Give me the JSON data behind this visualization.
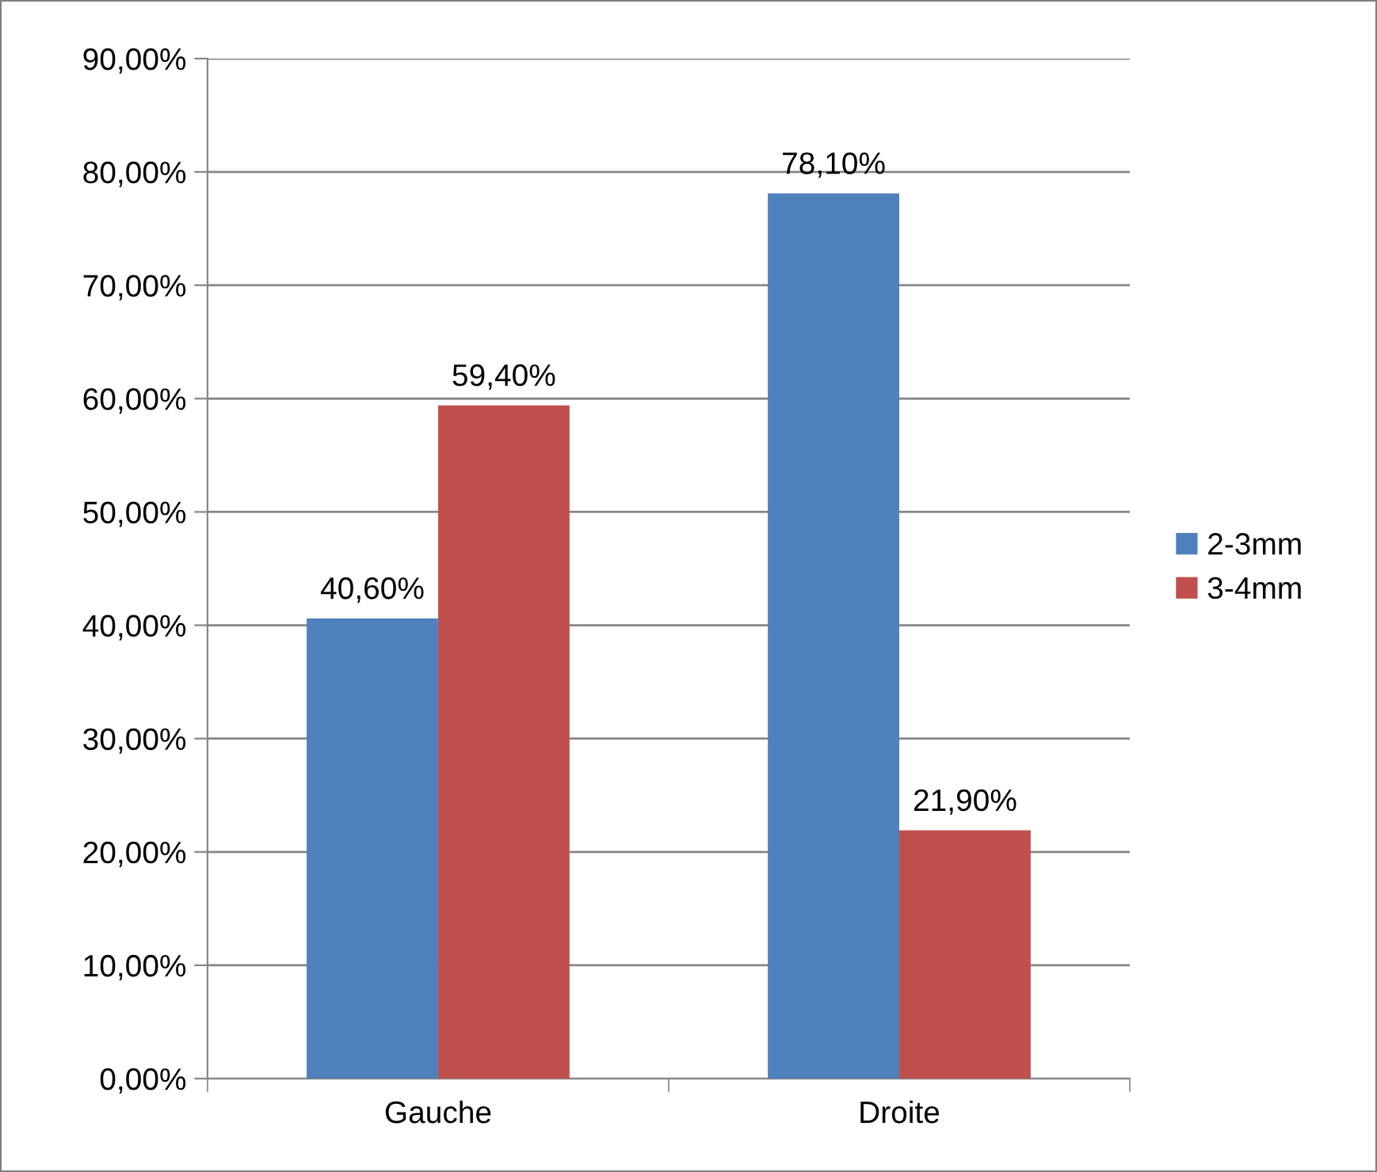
{
  "chart_data": {
    "type": "bar",
    "categories": [
      "Gauche",
      "Droite"
    ],
    "series": [
      {
        "name": "2-3mm",
        "color": "#4f81bd",
        "values": [
          40.6,
          78.1
        ],
        "value_labels": [
          "40,60%",
          "78,10%"
        ]
      },
      {
        "name": "3-4mm",
        "color": "#c0504d",
        "values": [
          59.4,
          21.9
        ],
        "value_labels": [
          "59,40%",
          "21,90%"
        ]
      }
    ],
    "ylim": [
      0,
      90
    ],
    "yticks": [
      {
        "value": 0,
        "label": "0,00%"
      },
      {
        "value": 10,
        "label": "10,00%"
      },
      {
        "value": 20,
        "label": "20,00%"
      },
      {
        "value": 30,
        "label": "30,00%"
      },
      {
        "value": 40,
        "label": "40,00%"
      },
      {
        "value": 50,
        "label": "50,00%"
      },
      {
        "value": 60,
        "label": "60,00%"
      },
      {
        "value": 70,
        "label": "70,00%"
      },
      {
        "value": 80,
        "label": "80,00%"
      },
      {
        "value": 90,
        "label": "90,00%"
      }
    ],
    "grid": "y",
    "legend": "right"
  }
}
